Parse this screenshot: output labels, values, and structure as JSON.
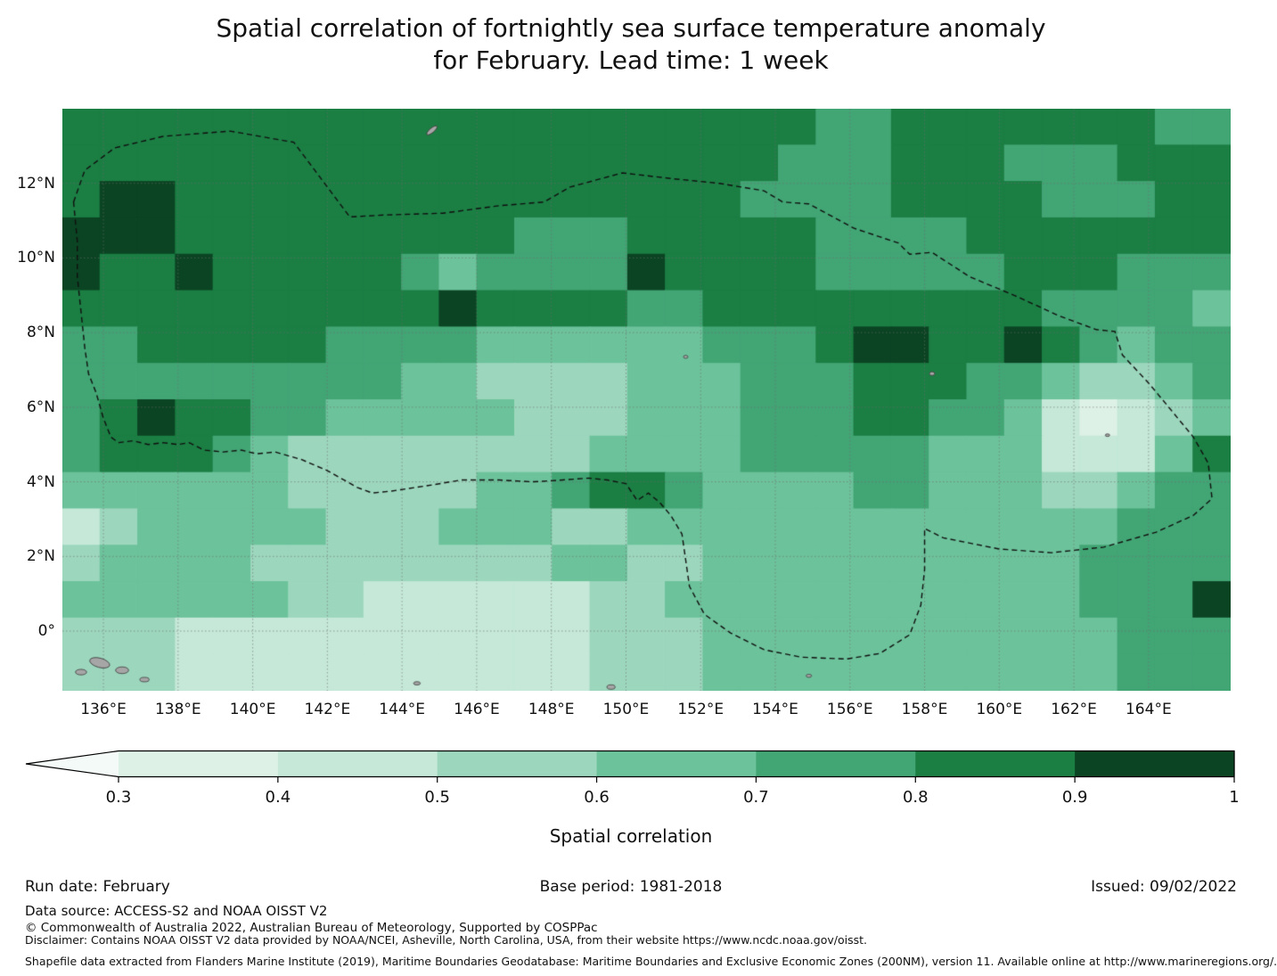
{
  "title": {
    "line1": "Spatial correlation of fortnightly sea surface temperature anomaly",
    "line2": "for February. Lead time: 1 week"
  },
  "chart_data": {
    "type": "heatmap",
    "title": "Spatial correlation of fortnightly sea surface temperature anomaly for February. Lead time: 1 week",
    "extent": {
      "lon_min": 134.9,
      "lon_max": 166.2,
      "lat_min": -1.6,
      "lat_max": 14.0
    },
    "x_ticks": [
      {
        "lon": 136,
        "label": "136°E"
      },
      {
        "lon": 138,
        "label": "138°E"
      },
      {
        "lon": 140,
        "label": "140°E"
      },
      {
        "lon": 142,
        "label": "142°E"
      },
      {
        "lon": 144,
        "label": "144°E"
      },
      {
        "lon": 146,
        "label": "146°E"
      },
      {
        "lon": 148,
        "label": "148°E"
      },
      {
        "lon": 150,
        "label": "150°E"
      },
      {
        "lon": 152,
        "label": "152°E"
      },
      {
        "lon": 154,
        "label": "154°E"
      },
      {
        "lon": 156,
        "label": "156°E"
      },
      {
        "lon": 158,
        "label": "158°E"
      },
      {
        "lon": 160,
        "label": "160°E"
      },
      {
        "lon": 162,
        "label": "162°E"
      },
      {
        "lon": 164,
        "label": "164°E"
      }
    ],
    "y_ticks": [
      {
        "lat": 12,
        "label": "12°N"
      },
      {
        "lat": 10,
        "label": "10°N"
      },
      {
        "lat": 8,
        "label": "8°N"
      },
      {
        "lat": 6,
        "label": "6°N"
      },
      {
        "lat": 4,
        "label": "4°N"
      },
      {
        "lat": 2,
        "label": "2°N"
      },
      {
        "lat": 0,
        "label": "0°"
      }
    ],
    "grid_lines": {
      "lons": [
        136,
        138,
        140,
        142,
        144,
        146,
        148,
        150,
        152,
        154,
        156,
        158,
        160,
        162,
        164
      ],
      "lats": [
        0,
        2,
        4,
        6,
        8,
        10,
        12
      ]
    },
    "colorbar": {
      "label": "Spatial correlation",
      "levels": [
        0.3,
        0.4,
        0.5,
        0.6,
        0.7,
        0.8,
        0.9,
        1.0
      ],
      "tick_labels": [
        "0.3",
        "0.4",
        "0.5",
        "0.6",
        "0.7",
        "0.8",
        "0.9",
        "1"
      ],
      "colors": [
        "#ddf1e7",
        "#c5e8d8",
        "#9cd6bd",
        "#6cc29b",
        "#42a574",
        "#1b7e43",
        "#0b4423"
      ],
      "under_color": "#f4faf7"
    },
    "grid": {
      "note": "approximate 1-degree spatial correlation values read from map colors, rows ordered north (14N) to south (-1.6N), cols west (134.9E) to east (166.2E)",
      "values": [
        [
          0.85,
          0.85,
          0.85,
          0.85,
          0.85,
          0.85,
          0.85,
          0.85,
          0.85,
          0.85,
          0.85,
          0.85,
          0.85,
          0.85,
          0.85,
          0.85,
          0.85,
          0.85,
          0.85,
          0.85,
          0.75,
          0.75,
          0.85,
          0.85,
          0.85,
          0.85,
          0.85,
          0.85,
          0.85,
          0.75,
          0.75
        ],
        [
          0.85,
          0.85,
          0.85,
          0.85,
          0.85,
          0.85,
          0.85,
          0.85,
          0.85,
          0.85,
          0.85,
          0.85,
          0.85,
          0.85,
          0.85,
          0.85,
          0.85,
          0.85,
          0.85,
          0.75,
          0.75,
          0.75,
          0.85,
          0.85,
          0.85,
          0.75,
          0.75,
          0.75,
          0.85,
          0.85,
          0.85
        ],
        [
          0.85,
          0.95,
          0.95,
          0.85,
          0.85,
          0.85,
          0.85,
          0.85,
          0.85,
          0.85,
          0.85,
          0.85,
          0.85,
          0.85,
          0.85,
          0.85,
          0.85,
          0.85,
          0.75,
          0.75,
          0.75,
          0.75,
          0.85,
          0.85,
          0.85,
          0.85,
          0.75,
          0.75,
          0.75,
          0.85,
          0.85
        ],
        [
          0.95,
          0.95,
          0.95,
          0.85,
          0.85,
          0.85,
          0.85,
          0.85,
          0.85,
          0.85,
          0.85,
          0.85,
          0.75,
          0.75,
          0.75,
          0.85,
          0.85,
          0.85,
          0.85,
          0.85,
          0.75,
          0.75,
          0.75,
          0.75,
          0.85,
          0.85,
          0.85,
          0.85,
          0.85,
          0.85,
          0.85
        ],
        [
          0.95,
          0.85,
          0.85,
          0.95,
          0.85,
          0.85,
          0.85,
          0.85,
          0.85,
          0.75,
          0.65,
          0.75,
          0.75,
          0.75,
          0.75,
          0.95,
          0.85,
          0.85,
          0.85,
          0.85,
          0.75,
          0.75,
          0.75,
          0.75,
          0.75,
          0.85,
          0.85,
          0.85,
          0.75,
          0.75,
          0.75
        ],
        [
          0.85,
          0.85,
          0.85,
          0.85,
          0.85,
          0.85,
          0.85,
          0.85,
          0.85,
          0.85,
          0.95,
          0.85,
          0.85,
          0.85,
          0.85,
          0.75,
          0.75,
          0.85,
          0.85,
          0.85,
          0.85,
          0.85,
          0.85,
          0.85,
          0.85,
          0.85,
          0.75,
          0.75,
          0.75,
          0.75,
          0.65
        ],
        [
          0.75,
          0.75,
          0.85,
          0.85,
          0.85,
          0.85,
          0.85,
          0.75,
          0.75,
          0.75,
          0.75,
          0.65,
          0.65,
          0.65,
          0.65,
          0.65,
          0.65,
          0.75,
          0.75,
          0.75,
          0.85,
          0.95,
          0.95,
          0.85,
          0.85,
          0.95,
          0.85,
          0.75,
          0.65,
          0.75,
          0.75
        ],
        [
          0.75,
          0.75,
          0.75,
          0.75,
          0.75,
          0.75,
          0.75,
          0.75,
          0.75,
          0.65,
          0.65,
          0.55,
          0.55,
          0.55,
          0.55,
          0.65,
          0.65,
          0.65,
          0.75,
          0.75,
          0.75,
          0.85,
          0.85,
          0.85,
          0.75,
          0.75,
          0.65,
          0.55,
          0.55,
          0.65,
          0.75
        ],
        [
          0.75,
          0.85,
          0.95,
          0.85,
          0.85,
          0.75,
          0.75,
          0.65,
          0.65,
          0.65,
          0.65,
          0.65,
          0.55,
          0.55,
          0.55,
          0.65,
          0.65,
          0.65,
          0.75,
          0.75,
          0.75,
          0.85,
          0.85,
          0.75,
          0.75,
          0.65,
          0.45,
          0.35,
          0.45,
          0.55,
          0.65
        ],
        [
          0.75,
          0.85,
          0.85,
          0.85,
          0.75,
          0.65,
          0.55,
          0.55,
          0.55,
          0.55,
          0.55,
          0.55,
          0.55,
          0.55,
          0.65,
          0.65,
          0.65,
          0.65,
          0.75,
          0.75,
          0.75,
          0.75,
          0.75,
          0.65,
          0.65,
          0.65,
          0.45,
          0.45,
          0.45,
          0.65,
          0.85
        ],
        [
          0.65,
          0.65,
          0.65,
          0.65,
          0.65,
          0.65,
          0.55,
          0.55,
          0.55,
          0.55,
          0.55,
          0.65,
          0.65,
          0.75,
          0.85,
          0.85,
          0.75,
          0.65,
          0.65,
          0.65,
          0.65,
          0.75,
          0.75,
          0.65,
          0.65,
          0.65,
          0.55,
          0.55,
          0.65,
          0.75,
          0.75
        ],
        [
          0.45,
          0.55,
          0.65,
          0.65,
          0.65,
          0.65,
          0.65,
          0.55,
          0.55,
          0.55,
          0.65,
          0.65,
          0.65,
          0.55,
          0.55,
          0.65,
          0.65,
          0.65,
          0.65,
          0.65,
          0.65,
          0.65,
          0.65,
          0.65,
          0.65,
          0.65,
          0.65,
          0.65,
          0.75,
          0.75,
          0.75
        ],
        [
          0.55,
          0.65,
          0.65,
          0.65,
          0.65,
          0.55,
          0.55,
          0.55,
          0.55,
          0.55,
          0.55,
          0.55,
          0.55,
          0.65,
          0.65,
          0.55,
          0.55,
          0.65,
          0.65,
          0.65,
          0.65,
          0.65,
          0.65,
          0.65,
          0.65,
          0.65,
          0.65,
          0.75,
          0.75,
          0.75,
          0.75
        ],
        [
          0.65,
          0.65,
          0.65,
          0.65,
          0.65,
          0.65,
          0.55,
          0.55,
          0.45,
          0.45,
          0.45,
          0.45,
          0.45,
          0.45,
          0.55,
          0.55,
          0.65,
          0.65,
          0.65,
          0.65,
          0.65,
          0.65,
          0.65,
          0.65,
          0.65,
          0.65,
          0.65,
          0.75,
          0.75,
          0.75,
          0.95
        ],
        [
          0.55,
          0.55,
          0.55,
          0.45,
          0.45,
          0.45,
          0.45,
          0.45,
          0.45,
          0.45,
          0.45,
          0.45,
          0.45,
          0.45,
          0.55,
          0.55,
          0.55,
          0.65,
          0.65,
          0.65,
          0.65,
          0.65,
          0.65,
          0.65,
          0.65,
          0.65,
          0.65,
          0.65,
          0.75,
          0.75,
          0.75
        ],
        [
          0.55,
          0.55,
          0.55,
          0.45,
          0.45,
          0.45,
          0.45,
          0.45,
          0.45,
          0.45,
          0.45,
          0.45,
          0.45,
          0.45,
          0.55,
          0.55,
          0.55,
          0.65,
          0.65,
          0.65,
          0.65,
          0.65,
          0.65,
          0.65,
          0.65,
          0.65,
          0.65,
          0.65,
          0.75,
          0.75,
          0.75
        ]
      ]
    },
    "eez_boundary": [
      [
        135.2,
        11.5
      ],
      [
        135.5,
        12.35
      ],
      [
        136.3,
        12.95
      ],
      [
        137.6,
        13.26
      ],
      [
        139.4,
        13.4
      ],
      [
        141.1,
        13.1
      ],
      [
        142.6,
        11.1
      ],
      [
        143.5,
        11.15
      ],
      [
        145.1,
        11.2
      ],
      [
        146.6,
        11.4
      ],
      [
        147.8,
        11.5
      ],
      [
        148.5,
        11.9
      ],
      [
        149.9,
        12.28
      ],
      [
        151.3,
        12.12
      ],
      [
        152.5,
        12.0
      ],
      [
        153.7,
        11.8
      ],
      [
        154.2,
        11.5
      ],
      [
        154.9,
        11.45
      ],
      [
        156.1,
        10.8
      ],
      [
        157.3,
        10.4
      ],
      [
        157.6,
        10.1
      ],
      [
        158.2,
        10.15
      ],
      [
        159.2,
        9.5
      ],
      [
        160.4,
        9.0
      ],
      [
        161.6,
        8.45
      ],
      [
        162.6,
        8.08
      ],
      [
        163.1,
        8.03
      ],
      [
        163.3,
        7.4
      ],
      [
        164.0,
        6.65
      ],
      [
        164.5,
        6.05
      ],
      [
        165.2,
        5.2
      ],
      [
        165.6,
        4.5
      ],
      [
        165.7,
        3.55
      ],
      [
        165.2,
        3.1
      ],
      [
        164.2,
        2.65
      ],
      [
        162.8,
        2.25
      ],
      [
        161.4,
        2.1
      ],
      [
        160.0,
        2.2
      ],
      [
        158.5,
        2.5
      ],
      [
        158.0,
        2.75
      ],
      [
        158.0,
        1.65
      ],
      [
        157.9,
        0.7
      ],
      [
        157.6,
        -0.1
      ],
      [
        156.8,
        -0.6
      ],
      [
        155.9,
        -0.75
      ],
      [
        154.7,
        -0.7
      ],
      [
        153.7,
        -0.5
      ],
      [
        152.8,
        -0.05
      ],
      [
        152.1,
        0.45
      ],
      [
        151.7,
        1.2
      ],
      [
        151.6,
        1.9
      ],
      [
        151.5,
        2.6
      ],
      [
        151.2,
        3.1
      ],
      [
        150.9,
        3.45
      ],
      [
        150.6,
        3.7
      ],
      [
        150.3,
        3.5
      ],
      [
        150.0,
        3.95
      ],
      [
        149.5,
        4.05
      ],
      [
        149.0,
        4.1
      ],
      [
        148.3,
        4.05
      ],
      [
        147.5,
        4.0
      ],
      [
        146.6,
        4.05
      ],
      [
        145.6,
        4.05
      ],
      [
        144.7,
        3.9
      ],
      [
        143.7,
        3.75
      ],
      [
        143.2,
        3.7
      ],
      [
        142.8,
        3.85
      ],
      [
        142.0,
        4.3
      ],
      [
        141.3,
        4.6
      ],
      [
        140.6,
        4.8
      ],
      [
        140.1,
        4.75
      ],
      [
        139.7,
        4.85
      ],
      [
        139.2,
        4.8
      ],
      [
        138.7,
        4.85
      ],
      [
        138.3,
        5.05
      ],
      [
        138.0,
        5.0
      ],
      [
        137.6,
        5.05
      ],
      [
        137.2,
        5.0
      ],
      [
        136.8,
        5.1
      ],
      [
        136.4,
        5.05
      ],
      [
        136.2,
        5.2
      ],
      [
        136.0,
        5.7
      ],
      [
        135.8,
        6.4
      ],
      [
        135.6,
        6.9
      ],
      [
        135.5,
        7.6
      ],
      [
        135.4,
        8.55
      ],
      [
        135.3,
        9.5
      ],
      [
        135.3,
        10.45
      ]
    ],
    "islands": [
      {
        "lon": 144.8,
        "lat": 13.42,
        "w": 0.35,
        "h": 0.12,
        "rot": -40
      },
      {
        "lon": 135.9,
        "lat": -0.85,
        "w": 0.55,
        "h": 0.25,
        "rot": 15
      },
      {
        "lon": 136.5,
        "lat": -1.05,
        "w": 0.35,
        "h": 0.18,
        "rot": 0
      },
      {
        "lon": 135.4,
        "lat": -1.1,
        "w": 0.3,
        "h": 0.15,
        "rot": 0
      },
      {
        "lon": 137.1,
        "lat": -1.3,
        "w": 0.25,
        "h": 0.12,
        "rot": 0
      },
      {
        "lon": 144.4,
        "lat": -1.4,
        "w": 0.18,
        "h": 0.09,
        "rot": 0
      },
      {
        "lon": 149.6,
        "lat": -1.5,
        "w": 0.22,
        "h": 0.12,
        "rot": 0
      },
      {
        "lon": 151.6,
        "lat": 7.35,
        "w": 0.12,
        "h": 0.08,
        "rot": 0
      },
      {
        "lon": 158.2,
        "lat": 6.9,
        "w": 0.14,
        "h": 0.1,
        "rot": 0
      },
      {
        "lon": 162.9,
        "lat": 5.25,
        "w": 0.12,
        "h": 0.07,
        "rot": 0
      },
      {
        "lon": 154.9,
        "lat": -1.2,
        "w": 0.15,
        "h": 0.08,
        "rot": 0
      }
    ]
  },
  "footer": {
    "run_date": "Run date: February",
    "base_period": "Base period: 1981-2018",
    "issued": "Issued: 09/02/2022",
    "data_source": "Data source: ACCESS-S2 and NOAA OISST V2",
    "copyright": "© Commonwealth of Australia 2022, Australian Bureau of Meteorology, Supported by COSPPac",
    "disclaimer": "Disclaimer: Contains NOAA OISST V2 data provided by NOAA/NCEI, Asheville, North Carolina, USA, from their website https://www.ncdc.noaa.gov/oisst.",
    "shapefile": "Shapefile data extracted from Flanders Marine Institute (2019), Maritime Boundaries Geodatabase: Maritime Boundaries and Exclusive Economic Zones (200NM), version 11. Available online at http://www.marineregions.org/."
  }
}
